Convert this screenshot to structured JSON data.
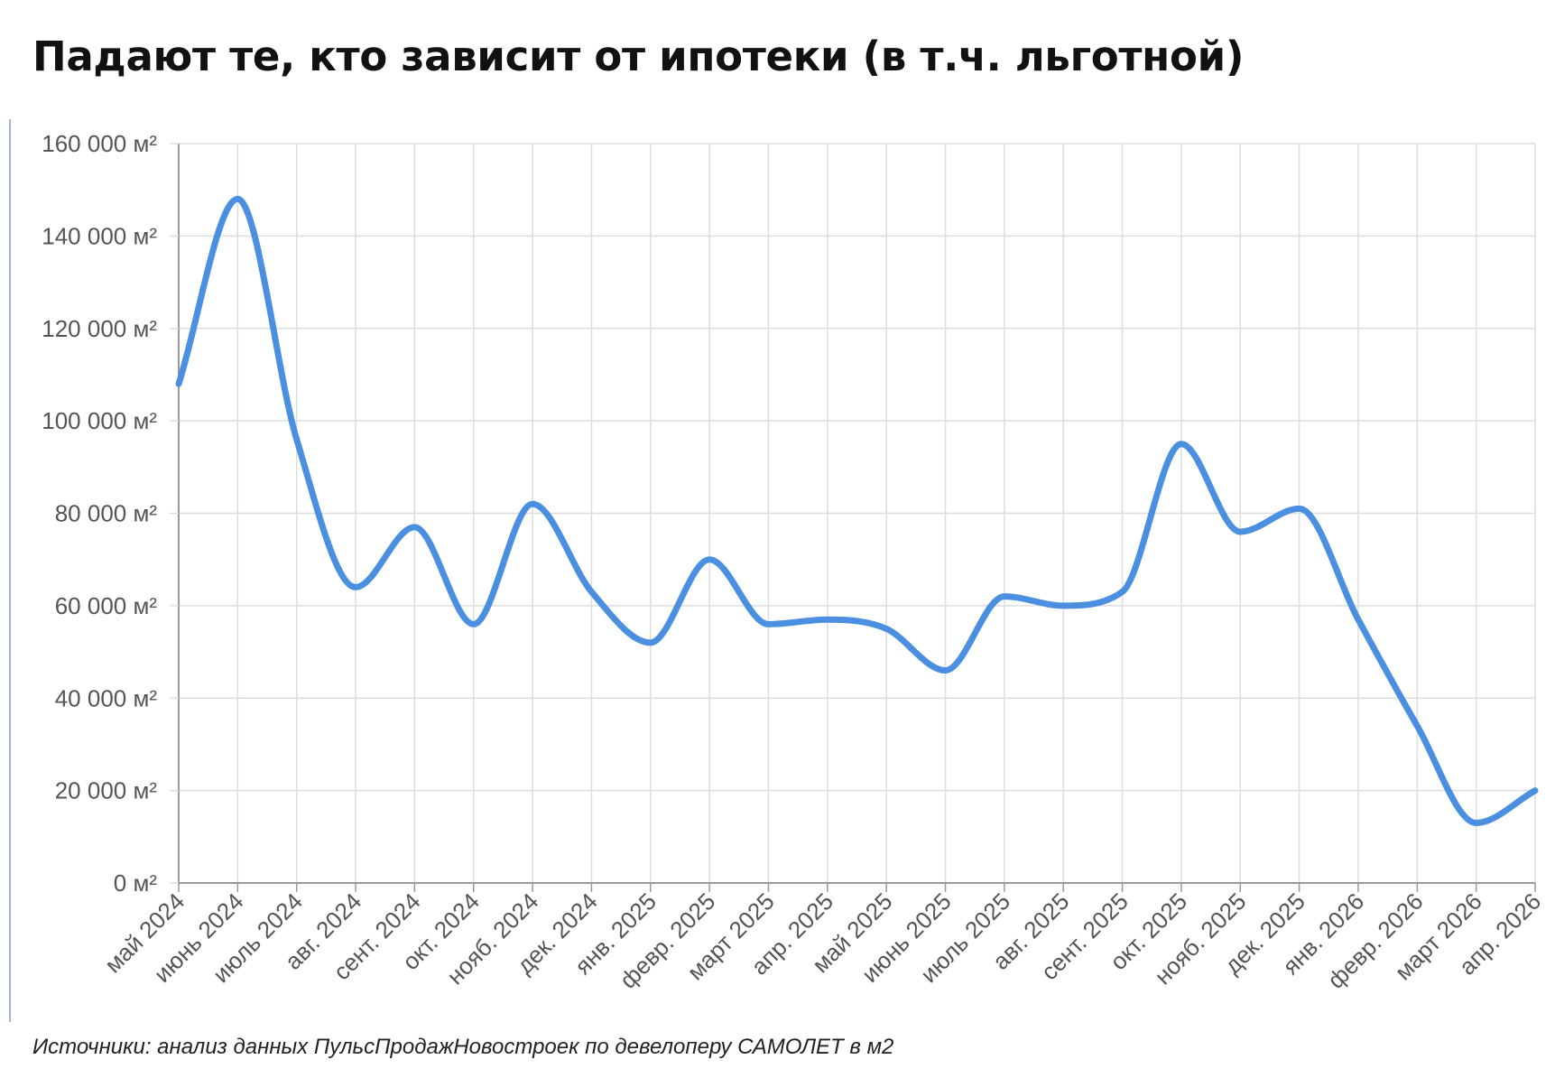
{
  "header": {
    "title": "Падают те, кто зависит от ипотеки (в т.ч. льготной)"
  },
  "footer": {
    "source": "Источники: анализ данных ПульсПродажНовостроек по девелоперу САМОЛЕТ в м2"
  },
  "chart_data": {
    "type": "line",
    "title": "",
    "xlabel": "",
    "ylabel": "",
    "ylim": [
      0,
      160000
    ],
    "grid": true,
    "legend": "none",
    "colors": {
      "line": "#4a8fe0",
      "grid": "#dddddd",
      "axis": "#999999"
    },
    "y_ticks": [
      {
        "value": 0,
        "label": "0 м²"
      },
      {
        "value": 20000,
        "label": "20 000 м²"
      },
      {
        "value": 40000,
        "label": "40 000 м²"
      },
      {
        "value": 60000,
        "label": "60 000 м²"
      },
      {
        "value": 80000,
        "label": "80 000 м²"
      },
      {
        "value": 100000,
        "label": "100 000 м²"
      },
      {
        "value": 120000,
        "label": "120 000 м²"
      },
      {
        "value": 140000,
        "label": "140 000 м²"
      },
      {
        "value": 160000,
        "label": "160 000 м²"
      }
    ],
    "categories": [
      "май 2024",
      "июнь 2024",
      "июль 2024",
      "авг. 2024",
      "сент. 2024",
      "окт. 2024",
      "нояб. 2024",
      "дек. 2024",
      "янв. 2025",
      "февр. 2025",
      "март 2025",
      "апр. 2025",
      "май 2025",
      "июнь 2025",
      "июль 2025",
      "авг. 2025",
      "сент. 2025",
      "окт. 2025",
      "нояб. 2025",
      "дек. 2025",
      "янв. 2026",
      "февр. 2026",
      "март 2026",
      "апр. 2026"
    ],
    "series": [
      {
        "values": [
          108000,
          148000,
          96000,
          64000,
          77000,
          56000,
          82000,
          63000,
          52000,
          70000,
          56000,
          57000,
          55000,
          46000,
          62000,
          60000,
          63000,
          95000,
          76000,
          81000,
          57000,
          34000,
          13000,
          20000
        ]
      }
    ]
  }
}
